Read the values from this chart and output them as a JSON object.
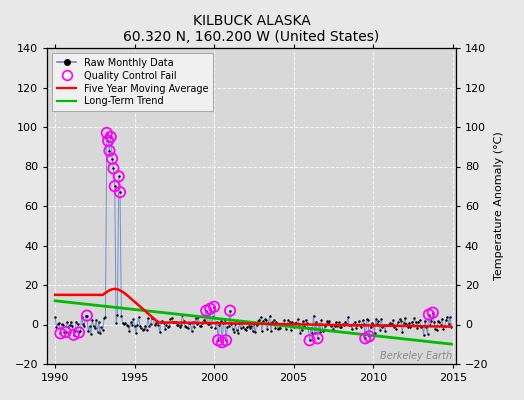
{
  "title": "KILBUCK ALASKA",
  "subtitle": "60.320 N, 160.200 W (United States)",
  "ylabel": "Temperature Anomaly (°C)",
  "watermark": "Berkeley Earth",
  "xlim": [
    1989.5,
    2015.2
  ],
  "ylim": [
    -20,
    140
  ],
  "yticks": [
    -20,
    0,
    20,
    40,
    60,
    80,
    100,
    120,
    140
  ],
  "xticks": [
    1990,
    1995,
    2000,
    2005,
    2010,
    2015
  ],
  "plot_bg_color": "#d8d8d8",
  "fig_bg_color": "#e8e8e8",
  "raw_color": "#6688cc",
  "raw_dot_color": "#000000",
  "qc_color": "#ff00ff",
  "ma_color": "#ff0000",
  "trend_color": "#00bb00",
  "grid_color": "#ffffff",
  "seed": 7
}
